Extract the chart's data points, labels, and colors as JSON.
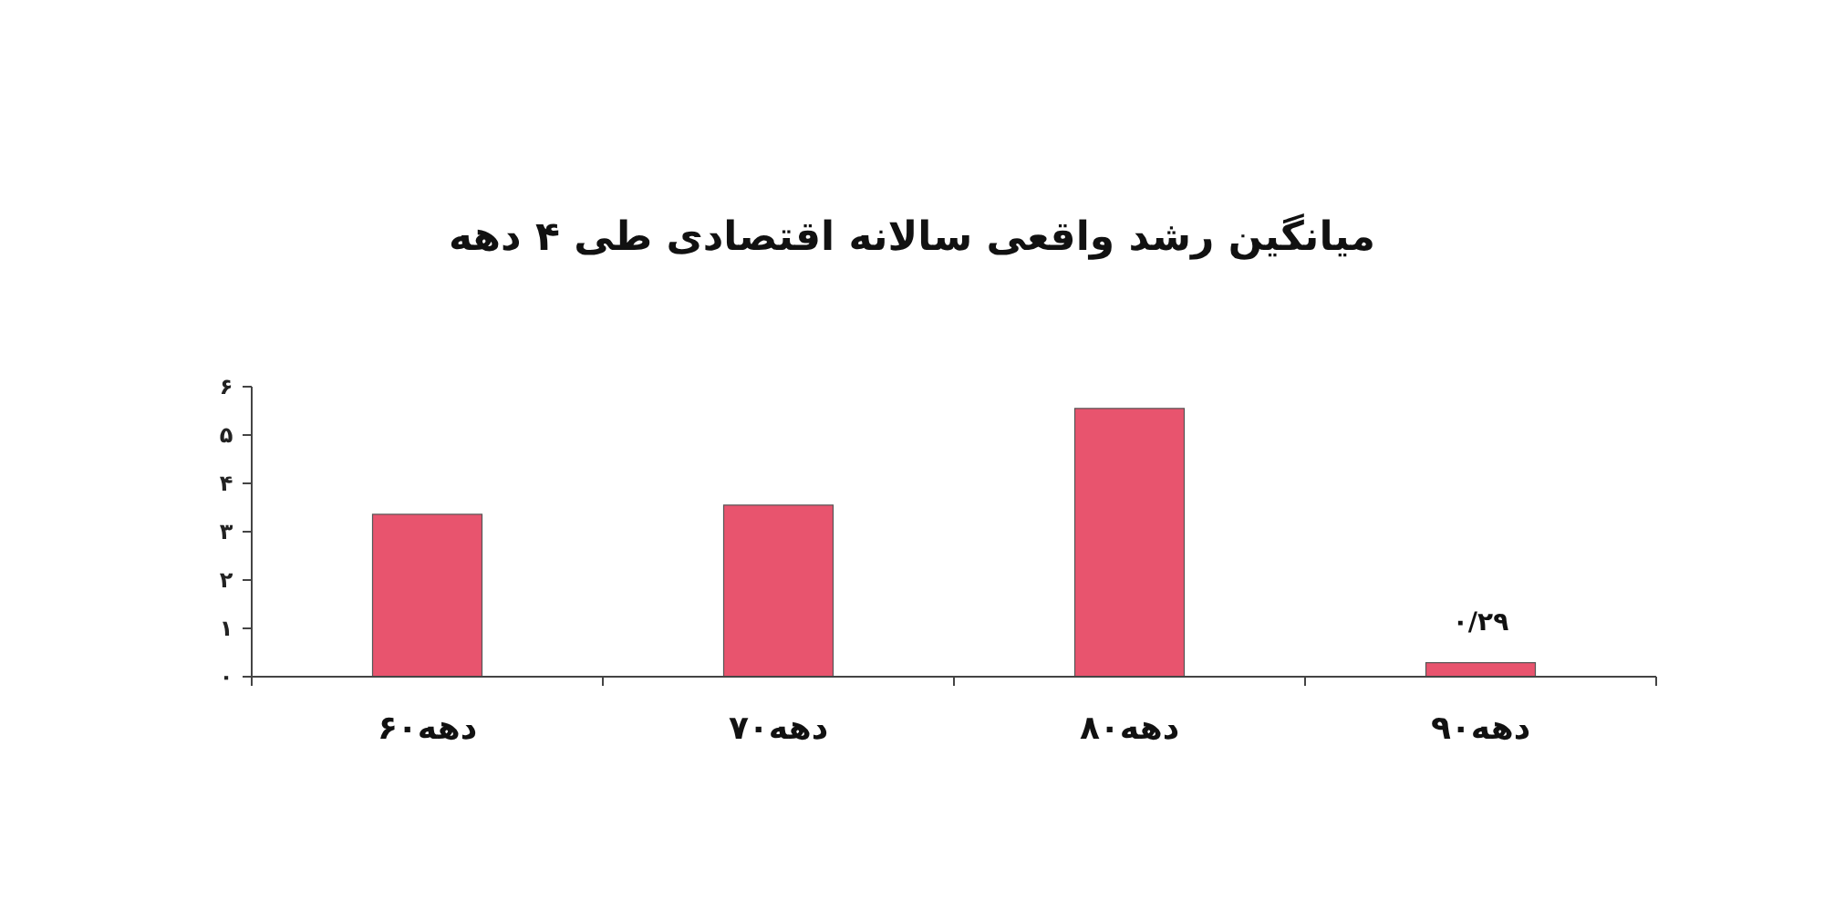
{
  "chart_data": {
    "type": "bar",
    "title": "میانگین رشد واقعی سالانه اقتصادی طی ۴ دهه",
    "categories": [
      "دهه۶۰",
      "دهه۷۰",
      "دهه۸۰",
      "دهه۹۰"
    ],
    "values": [
      3.36,
      3.55,
      5.55,
      0.29
    ],
    "value_labels": [
      null,
      null,
      null,
      "۰/۲۹"
    ],
    "color": "#e8546e",
    "ylim": [
      0,
      6
    ],
    "yticks": [
      {
        "value": 0,
        "label": "۰"
      },
      {
        "value": 1,
        "label": "۱"
      },
      {
        "value": 2,
        "label": "۲"
      },
      {
        "value": 3,
        "label": "۳"
      },
      {
        "value": 4,
        "label": "۴"
      },
      {
        "value": 5,
        "label": "۵"
      },
      {
        "value": 6,
        "label": "۶"
      }
    ],
    "data_labels": false
  }
}
